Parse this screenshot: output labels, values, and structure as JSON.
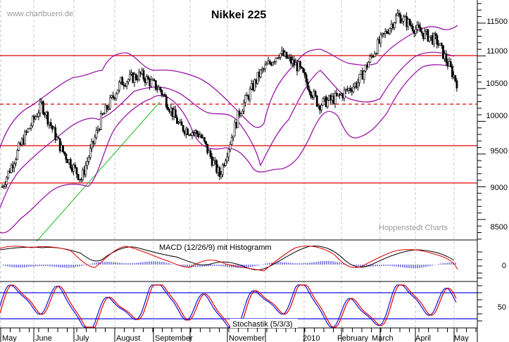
{
  "header": {
    "title": "Nikkei 225",
    "watermark_source": "www.chartbuero.de",
    "watermark_credit": "Hoppenstedt Charts"
  },
  "colors": {
    "support_resistance": "#e00000",
    "bollinger": "#9a18a8",
    "trendline": "#22bb22",
    "macd_line": "#000000",
    "signal_line": "#e00000",
    "histogram": "#1010cc",
    "stoch_k": "#1010dd",
    "stoch_d": "#e00000",
    "grid": "#c8c8c8"
  },
  "chart_data": [
    {
      "type": "candlestick",
      "title": "Nikkei 225",
      "xlabel": "",
      "ylabel": "",
      "ylim": [
        8200,
        11800
      ],
      "y_ticks": [
        8500,
        9000,
        9500,
        10000,
        10500,
        11000,
        11500
      ],
      "x_ticks": [
        "May",
        "June",
        "July",
        "August",
        "September",
        "November",
        "2010",
        "February",
        "March",
        "April",
        "May"
      ],
      "grid": true,
      "overlays": [
        "Bollinger Bands",
        "Horizontal support/resistance lines",
        "Trendline"
      ],
      "horizontal_lines": [
        {
          "value": 10900,
          "style": "solid"
        },
        {
          "value": 10150,
          "style": "dashed"
        },
        {
          "value": 9550,
          "style": "solid"
        },
        {
          "value": 9050,
          "style": "solid"
        }
      ],
      "close_series_approx": {
        "x": [
          "May",
          "Jun",
          "Jun-mid",
          "Jul",
          "Jul-mid",
          "Aug",
          "Aug-mid",
          "Sep",
          "Oct",
          "Oct-mid",
          "Nov",
          "Nov-end",
          "Dec",
          "Dec-end",
          "Jan",
          "Jan-mid",
          "Feb",
          "Feb-mid",
          "Mar",
          "Mar-mid",
          "Apr",
          "Apr-mid",
          "Apr-end",
          "May"
        ],
        "values": [
          9000,
          9600,
          10100,
          9500,
          9100,
          9900,
          10400,
          10500,
          10300,
          9800,
          9700,
          9150,
          10000,
          10500,
          10800,
          10600,
          10100,
          10200,
          10400,
          10900,
          11300,
          11100,
          10950,
          10400
        ]
      }
    },
    {
      "type": "line",
      "title": "MACD (12/26/9) mit Histogramm",
      "y_ticks": [
        0
      ],
      "series": [
        {
          "name": "MACD"
        },
        {
          "name": "Signal"
        },
        {
          "name": "Histogramm"
        }
      ]
    },
    {
      "type": "line",
      "title": "Stochastik (5/3/3)",
      "y_ticks": [
        50
      ],
      "horizontal_lines": [
        80,
        20
      ],
      "series": [
        {
          "name": "%K"
        },
        {
          "name": "%D"
        }
      ]
    }
  ],
  "axis": {
    "price_ticks": [
      "11500",
      "11000",
      "10500",
      "10000",
      "9500",
      "9000",
      "8500"
    ],
    "macd_tick": "0",
    "stoch_tick": "50",
    "months": [
      "May",
      "June",
      "July",
      "August",
      "September",
      "November",
      "2010",
      "February",
      "March",
      "April",
      "May"
    ]
  },
  "panels": {
    "macd_label": "MACD (12/26/9) mit Histogramm",
    "stoch_label": "Stochastik (5/3/3)"
  }
}
